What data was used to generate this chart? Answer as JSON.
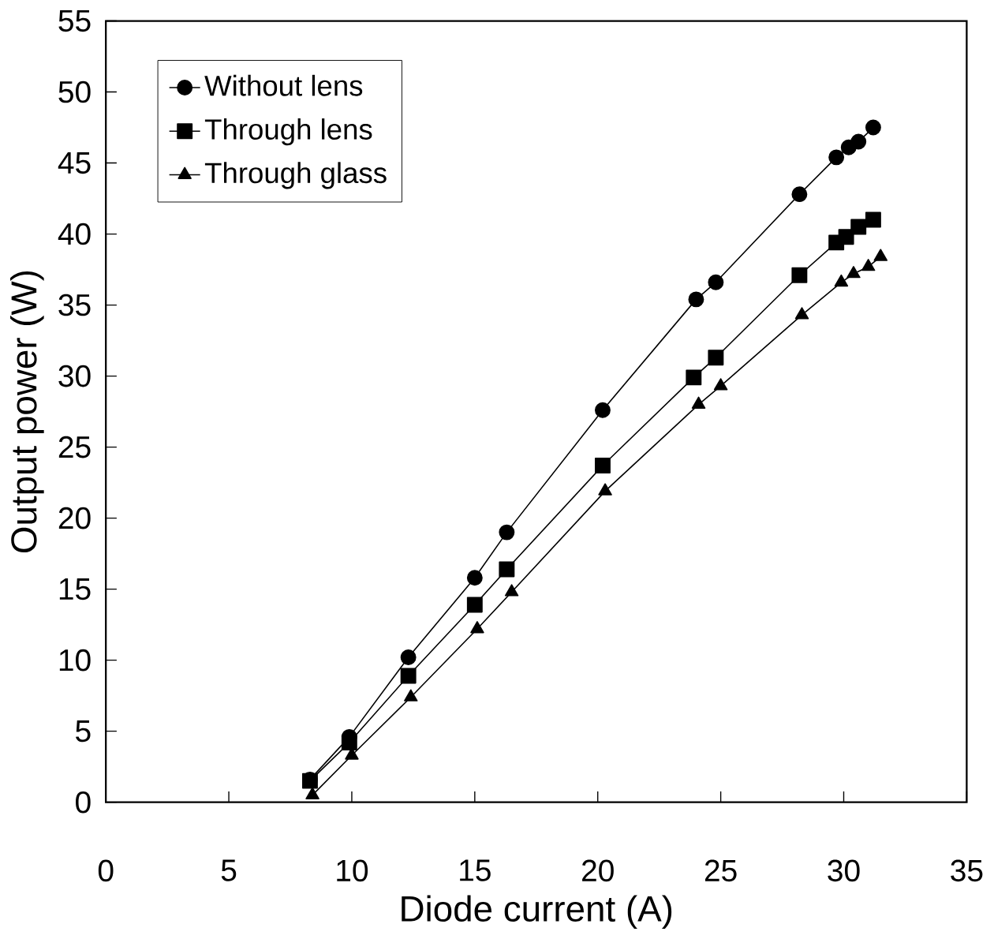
{
  "chart_data": {
    "type": "line",
    "xlabel": "Diode current (A)",
    "ylabel": "Output power (W)",
    "xlim": [
      0,
      35
    ],
    "ylim": [
      0,
      55
    ],
    "xticks": [
      0,
      5,
      10,
      15,
      20,
      25,
      30,
      35
    ],
    "yticks": [
      0,
      5,
      10,
      15,
      20,
      25,
      30,
      35,
      40,
      45,
      50,
      55
    ],
    "legend": "top left",
    "grid": false,
    "series": [
      {
        "name": "Without lens",
        "color": "#000000",
        "marker": "circle",
        "x": [
          8.3,
          9.9,
          12.3,
          15.0,
          16.3,
          20.2,
          24.0,
          24.8,
          28.2,
          29.7,
          30.2,
          30.6,
          31.2
        ],
        "values": [
          1.6,
          4.6,
          10.2,
          15.8,
          19.0,
          27.6,
          35.4,
          36.6,
          42.8,
          45.4,
          46.1,
          46.5,
          47.5
        ]
      },
      {
        "name": "Through lens",
        "color": "#000000",
        "marker": "square",
        "x": [
          8.3,
          9.9,
          12.3,
          15.0,
          16.3,
          20.2,
          23.9,
          24.8,
          28.2,
          29.7,
          30.1,
          30.6,
          31.2
        ],
        "values": [
          1.5,
          4.2,
          8.9,
          13.9,
          16.4,
          23.7,
          29.9,
          31.3,
          37.1,
          39.4,
          39.8,
          40.5,
          41.0
        ]
      },
      {
        "name": "Through glass",
        "color": "#000000",
        "marker": "triangle",
        "x": [
          8.4,
          10.0,
          12.4,
          15.1,
          16.5,
          20.3,
          24.1,
          25.0,
          28.3,
          29.9,
          30.4,
          31.0,
          31.5
        ],
        "values": [
          0.5,
          3.3,
          7.4,
          12.2,
          14.8,
          21.9,
          28.0,
          29.3,
          34.3,
          36.6,
          37.2,
          37.7,
          38.4
        ]
      }
    ]
  }
}
